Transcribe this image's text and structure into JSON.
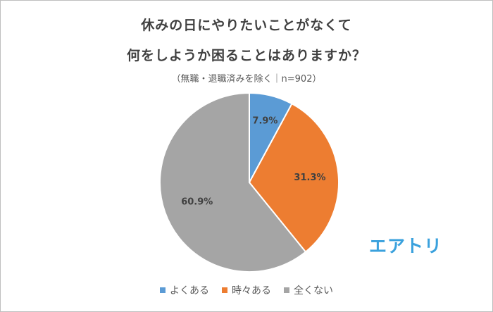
{
  "chart_data": {
    "type": "pie",
    "title_lines": [
      "休みの日にやりたいことがなくて",
      "何をしようか困ることはありますか？"
    ],
    "subtitle": "（無職・退職済みを除く｜n=902）",
    "categories": [
      "よくある",
      "時々ある",
      "全くない"
    ],
    "values": [
      7.9,
      31.3,
      60.9
    ],
    "labels": [
      "7.9%",
      "31.3%",
      "60.9%"
    ],
    "colors": [
      "#5b9bd5",
      "#ed7d31",
      "#a5a5a5"
    ],
    "legend_position": "bottom",
    "start": "top, clockwise"
  },
  "logo": {
    "text": "エアトリ",
    "color": "#3aa1dd"
  }
}
